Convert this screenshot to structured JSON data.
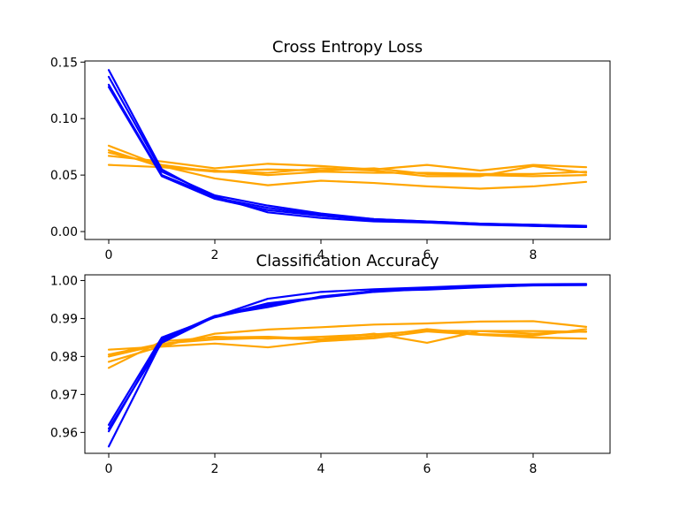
{
  "colors": {
    "train": "#0000ff",
    "test": "#ffa500"
  },
  "chart_data": [
    {
      "type": "line",
      "title": "Cross Entropy Loss",
      "xlabel": "",
      "ylabel": "",
      "x": [
        0,
        1,
        2,
        3,
        4,
        5,
        6,
        7,
        8,
        9
      ],
      "xlim": [
        -0.45,
        9.45
      ],
      "ylim": [
        -0.007,
        0.151
      ],
      "xticks": [
        0,
        2,
        4,
        6,
        8
      ],
      "xtick_labels": [
        "0",
        "2",
        "4",
        "6",
        "8"
      ],
      "yticks": [
        0.0,
        0.05,
        0.1,
        0.15
      ],
      "ytick_labels": [
        "0.00",
        "0.05",
        "0.10",
        "0.15"
      ],
      "grid": false,
      "series": [
        {
          "group": "train",
          "values": [
            0.143,
            0.055,
            0.03,
            0.021,
            0.015,
            0.011,
            0.009,
            0.007,
            0.006,
            0.005
          ]
        },
        {
          "group": "train",
          "values": [
            0.137,
            0.053,
            0.032,
            0.023,
            0.016,
            0.011,
            0.009,
            0.007,
            0.006,
            0.005
          ]
        },
        {
          "group": "train",
          "values": [
            0.128,
            0.049,
            0.029,
            0.019,
            0.014,
            0.01,
            0.008,
            0.007,
            0.005,
            0.004
          ]
        },
        {
          "group": "train",
          "values": [
            0.13,
            0.05,
            0.031,
            0.017,
            0.012,
            0.009,
            0.008,
            0.006,
            0.005,
            0.004
          ]
        },
        {
          "group": "test",
          "values": [
            0.076,
            0.058,
            0.047,
            0.041,
            0.045,
            0.043,
            0.04,
            0.038,
            0.04,
            0.044
          ]
        },
        {
          "group": "test",
          "values": [
            0.072,
            0.057,
            0.053,
            0.052,
            0.056,
            0.054,
            0.049,
            0.049,
            0.058,
            0.052
          ]
        },
        {
          "group": "test",
          "values": [
            0.07,
            0.059,
            0.053,
            0.055,
            0.054,
            0.056,
            0.051,
            0.05,
            0.049,
            0.05
          ]
        },
        {
          "group": "test",
          "values": [
            0.067,
            0.062,
            0.056,
            0.06,
            0.058,
            0.055,
            0.059,
            0.054,
            0.059,
            0.057
          ]
        },
        {
          "group": "test",
          "values": [
            0.059,
            0.057,
            0.054,
            0.05,
            0.053,
            0.052,
            0.052,
            0.051,
            0.051,
            0.053
          ]
        }
      ]
    },
    {
      "type": "line",
      "title": "Classification Accuracy",
      "xlabel": "",
      "ylabel": "",
      "x": [
        0,
        1,
        2,
        3,
        4,
        5,
        6,
        7,
        8,
        9
      ],
      "xlim": [
        -0.45,
        9.45
      ],
      "ylim": [
        0.9545,
        1.0015
      ],
      "xticks": [
        0,
        2,
        4,
        6,
        8
      ],
      "xtick_labels": [
        "0",
        "2",
        "4",
        "6",
        "8"
      ],
      "yticks": [
        0.96,
        0.97,
        0.98,
        0.99,
        1.0
      ],
      "ytick_labels": [
        "0.96",
        "0.97",
        "0.98",
        "0.99",
        "1.00"
      ],
      "grid": false,
      "series": [
        {
          "group": "train",
          "values": [
            0.9563,
            0.984,
            0.9905,
            0.9952,
            0.997,
            0.9977,
            0.9982,
            0.9987,
            0.999,
            0.9991
          ]
        },
        {
          "group": "train",
          "values": [
            0.9603,
            0.9845,
            0.9907,
            0.993,
            0.9958,
            0.9972,
            0.998,
            0.9985,
            0.9988,
            0.999
          ]
        },
        {
          "group": "train",
          "values": [
            0.962,
            0.985,
            0.9903,
            0.9935,
            0.9955,
            0.997,
            0.9978,
            0.9983,
            0.9987,
            0.9988
          ]
        },
        {
          "group": "train",
          "values": [
            0.961,
            0.9836,
            0.9905,
            0.994,
            0.9956,
            0.9973,
            0.9976,
            0.9982,
            0.9988,
            0.9989
          ]
        },
        {
          "group": "test",
          "values": [
            0.9818,
            0.9826,
            0.9834,
            0.9824,
            0.984,
            0.9848,
            0.9866,
            0.9857,
            0.985,
            0.9847
          ]
        },
        {
          "group": "test",
          "values": [
            0.977,
            0.984,
            0.985,
            0.9852,
            0.9846,
            0.986,
            0.9836,
            0.9867,
            0.986,
            0.9866
          ]
        },
        {
          "group": "test",
          "values": [
            0.98,
            0.9832,
            0.9852,
            0.9847,
            0.9852,
            0.9858,
            0.9868,
            0.9867,
            0.9867,
            0.9865
          ]
        },
        {
          "group": "test",
          "values": [
            0.9786,
            0.9827,
            0.986,
            0.9871,
            0.9877,
            0.9884,
            0.9887,
            0.9892,
            0.9893,
            0.9878
          ]
        },
        {
          "group": "test",
          "values": [
            0.9805,
            0.9834,
            0.9845,
            0.9849,
            0.9844,
            0.9853,
            0.9872,
            0.9859,
            0.9855,
            0.9872
          ]
        }
      ]
    }
  ]
}
